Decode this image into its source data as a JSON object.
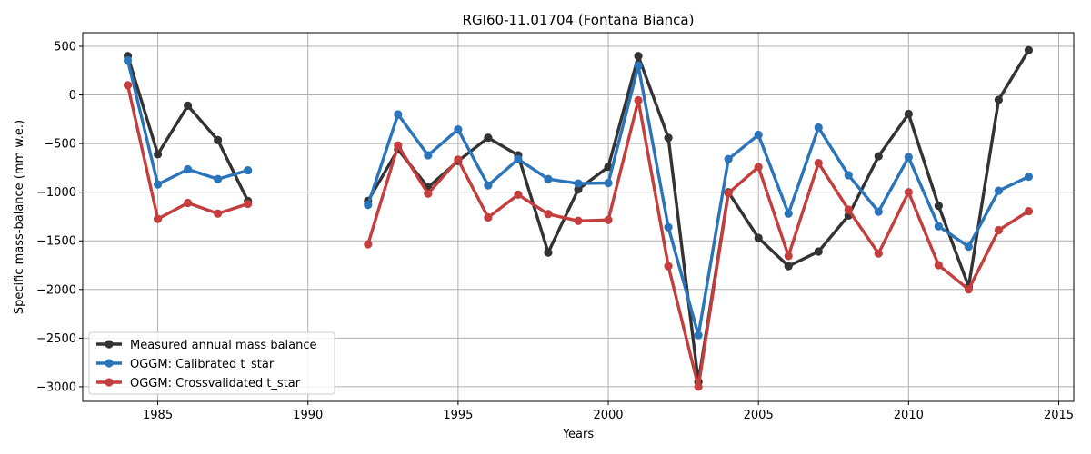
{
  "chart_data": {
    "type": "line",
    "title": "RGI60-11.01704 (Fontana Bianca)",
    "xlabel": "Years",
    "ylabel": "Specific mass-balance (mm w.e.)",
    "xlim": [
      1982.5,
      2015.5
    ],
    "ylim": [
      -3150,
      640
    ],
    "xticks": [
      1985,
      1990,
      1995,
      2000,
      2005,
      2010,
      2015
    ],
    "yticks": [
      500,
      0,
      -500,
      -1000,
      -1500,
      -2000,
      -2500,
      -3000
    ],
    "xtick_labels": [
      "1985",
      "1990",
      "1995",
      "2000",
      "2005",
      "2010",
      "2015"
    ],
    "ytick_labels": [
      "500",
      "0",
      "−500",
      "−1000",
      "−1500",
      "−2000",
      "−2500",
      "−3000"
    ],
    "grid": true,
    "legend_position": "lower-left",
    "x": [
      1984,
      1985,
      1986,
      1987,
      1988,
      1989,
      1990,
      1991,
      1992,
      1993,
      1994,
      1995,
      1996,
      1997,
      1998,
      1999,
      2000,
      2001,
      2002,
      2003,
      2004,
      2005,
      2006,
      2007,
      2008,
      2009,
      2010,
      2011,
      2012,
      2013,
      2014
    ],
    "series": [
      {
        "name": "Measured annual mass balance",
        "color": "#333333",
        "values": [
          400,
          -610,
          -110,
          -465,
          -1090,
          null,
          null,
          null,
          -1090,
          -560,
          -950,
          -680,
          -440,
          -620,
          -1620,
          -970,
          -740,
          400,
          -440,
          -2950,
          -1000,
          -1470,
          -1760,
          -1610,
          -1240,
          -630,
          -195,
          -1140,
          -1970,
          -50,
          460
        ]
      },
      {
        "name": "OGGM: Calibrated t_star",
        "color": "#2b74b9",
        "values": [
          355,
          -920,
          -765,
          -865,
          -775,
          null,
          null,
          null,
          -1130,
          -200,
          -620,
          -355,
          -930,
          -660,
          -865,
          -910,
          -905,
          300,
          -1360,
          -2470,
          -660,
          -410,
          -1220,
          -335,
          -825,
          -1200,
          -640,
          -1350,
          -1560,
          -985,
          -840
        ]
      },
      {
        "name": "OGGM: Crossvalidated t_star",
        "color": "#c43e3e",
        "values": [
          100,
          -1275,
          -1110,
          -1220,
          -1120,
          null,
          null,
          null,
          -1535,
          -520,
          -1015,
          -665,
          -1260,
          -1025,
          -1225,
          -1295,
          -1285,
          -55,
          -1760,
          -3000,
          -1010,
          -740,
          -1655,
          -700,
          -1180,
          -1630,
          -1000,
          -1750,
          -2000,
          -1390,
          -1195
        ]
      }
    ]
  }
}
